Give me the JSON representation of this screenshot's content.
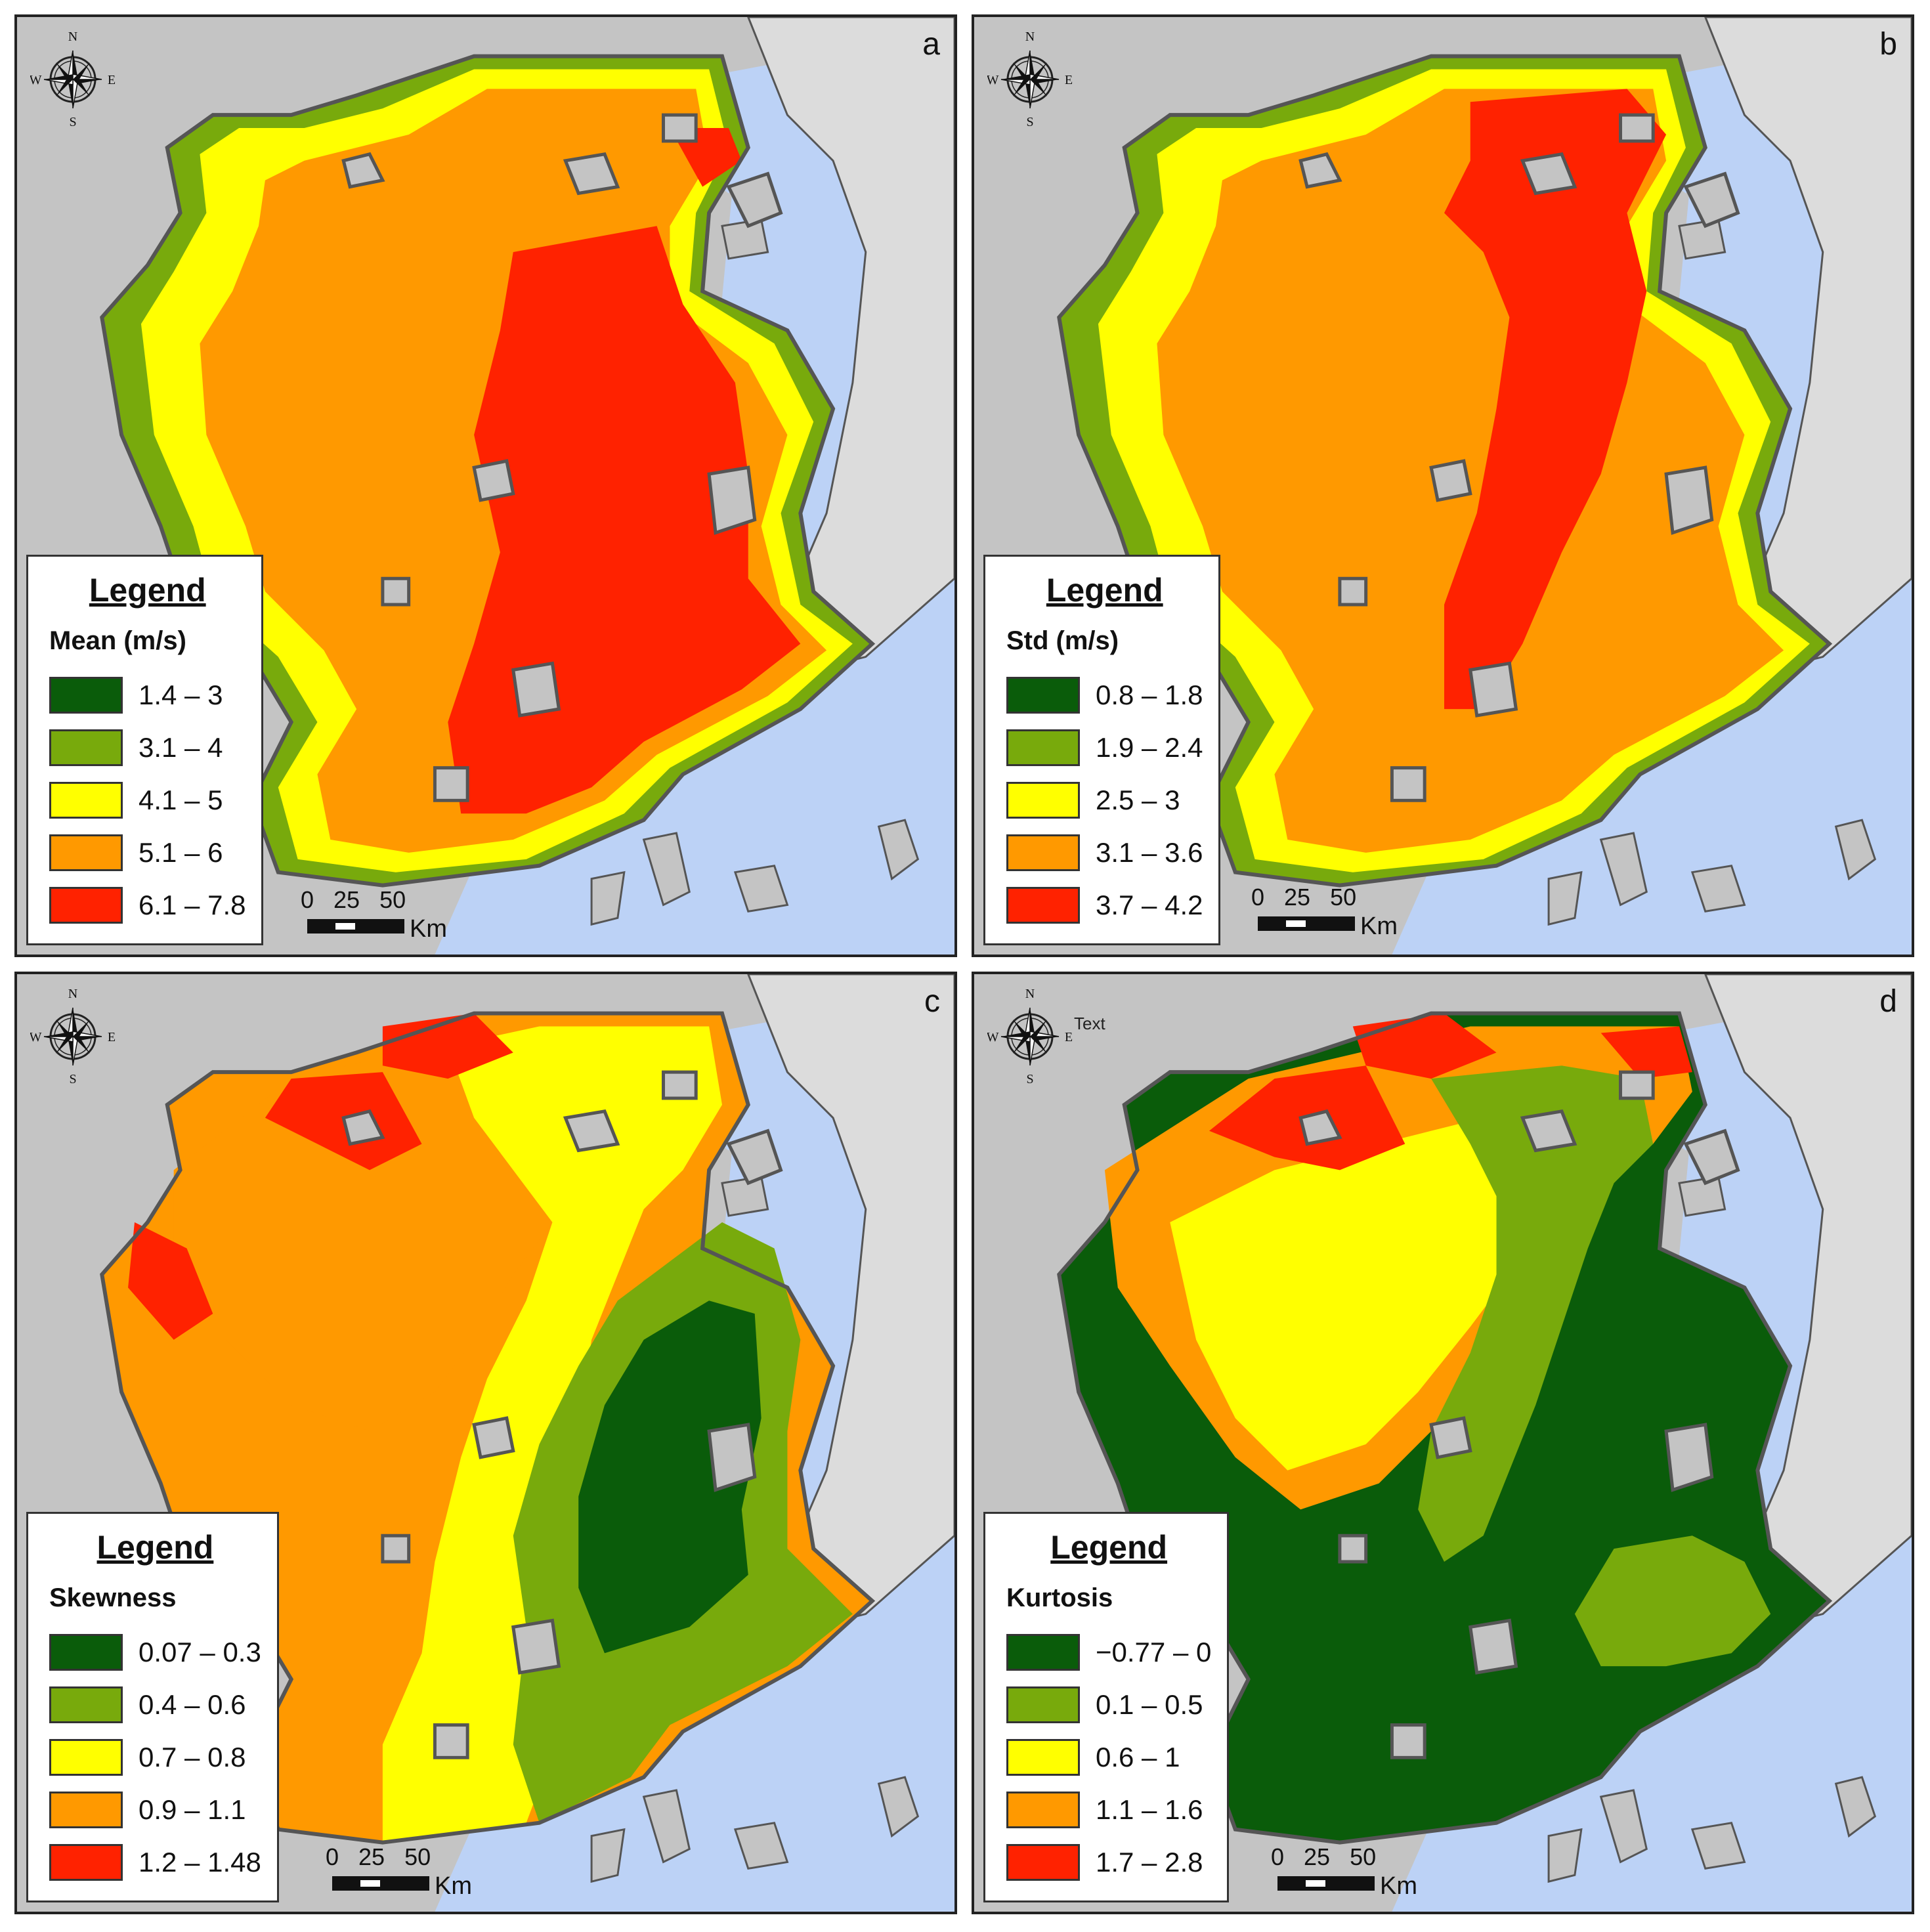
{
  "compass": {
    "n": "N",
    "s": "S",
    "e": "E",
    "w": "W"
  },
  "scale": {
    "ticks": "0   25   50",
    "unit": "Km"
  },
  "colors": {
    "land": "#c4c4c4",
    "land_light": "#dcdcdc",
    "water": "#bcd2f6",
    "border": "#555555",
    "classes": [
      "#0a5c0a",
      "#78aa0c",
      "#ffff00",
      "#ff9900",
      "#ff2200"
    ]
  },
  "panels": [
    {
      "letter": "a",
      "legend_title": "Legend",
      "variable": "Mean (m/s)",
      "classes": [
        "1.4 – 3",
        "3.1 – 4",
        "4.1 – 5",
        "5.1 – 6",
        "6.1 – 7.8"
      ],
      "extra_label": ""
    },
    {
      "letter": "b",
      "legend_title": "Legend",
      "variable": "Std (m/s)",
      "classes": [
        "0.8 – 1.8",
        "1.9 – 2.4",
        "2.5 – 3",
        "3.1 – 3.6",
        "3.7 – 4.2"
      ],
      "extra_label": ""
    },
    {
      "letter": "c",
      "legend_title": "Legend",
      "variable": "Skewness",
      "classes": [
        "0.07 – 0.3",
        "0.4 – 0.6",
        "0.7 – 0.8",
        "0.9 – 1.1",
        "1.2 – 1.48"
      ],
      "extra_label": ""
    },
    {
      "letter": "d",
      "legend_title": "Legend",
      "variable": "Kurtosis",
      "classes": [
        "−0.77 – 0",
        "0.1 – 0.5",
        "0.6 – 1",
        "1.1 – 1.6",
        "1.7 – 2.8"
      ],
      "extra_label": "Text"
    }
  ]
}
